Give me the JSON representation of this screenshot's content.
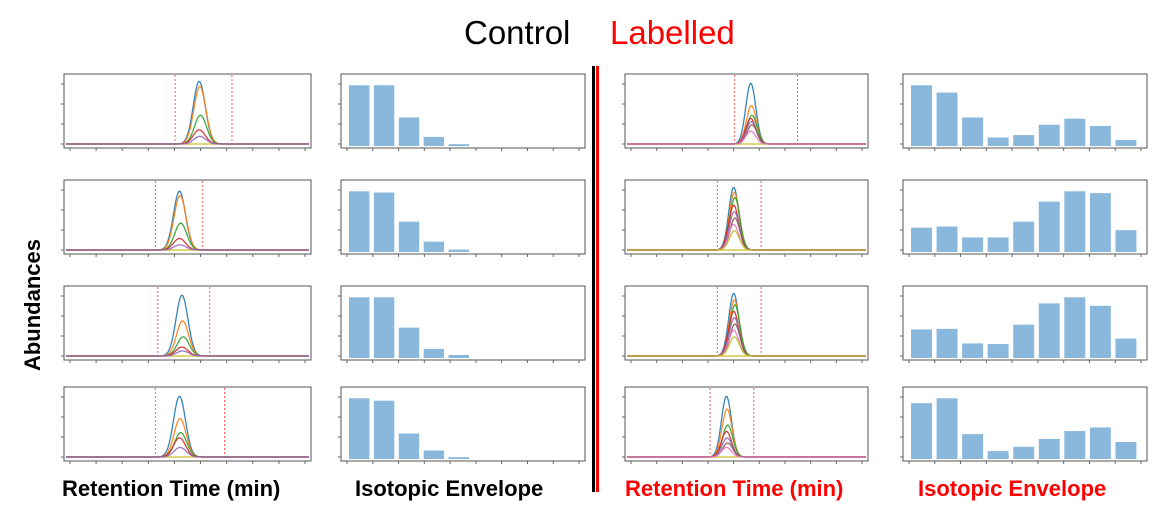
{
  "header": {
    "control": "Control",
    "labelled": "Labelled"
  },
  "ylabel": "Abundances",
  "xlabels": {
    "control_rt": "Retention Time (min)",
    "control_iso": "Isotopic Envelope",
    "labelled_rt": "Retention Time (min)",
    "labelled_iso": "Isotopic Envelope"
  },
  "colors": {
    "control_text": "#000000",
    "labelled_text": "#ff0000",
    "bar": "#8ab8dd",
    "window_line": "#ff5a5a",
    "trace_palette": [
      "#1f77b4",
      "#ff7f0e",
      "#2ca02c",
      "#d62728",
      "#9467bd",
      "#8c564b",
      "#e377c2",
      "#bcbd22",
      "#17becf"
    ]
  },
  "chart_data": [
    {
      "type": "bar",
      "group": "Control",
      "row": 1,
      "values": [
        1.0,
        1.0,
        0.47,
        0.15,
        0.03
      ],
      "ylim": [
        0,
        1.12
      ]
    },
    {
      "type": "bar",
      "group": "Control",
      "row": 2,
      "values": [
        1.0,
        0.98,
        0.5,
        0.17,
        0.04
      ],
      "ylim": [
        0,
        1.12
      ]
    },
    {
      "type": "bar",
      "group": "Control",
      "row": 3,
      "values": [
        1.0,
        1.0,
        0.5,
        0.15,
        0.05
      ],
      "ylim": [
        0,
        1.12
      ]
    },
    {
      "type": "bar",
      "group": "Control",
      "row": 4,
      "values": [
        1.0,
        0.96,
        0.42,
        0.14,
        0.03
      ],
      "ylim": [
        0,
        1.12
      ]
    },
    {
      "type": "bar",
      "group": "Labelled",
      "row": 1,
      "values": [
        1.0,
        0.88,
        0.47,
        0.14,
        0.18,
        0.35,
        0.45,
        0.33,
        0.1
      ],
      "ylim": [
        0,
        1.12
      ]
    },
    {
      "type": "bar",
      "group": "Labelled",
      "row": 2,
      "values": [
        0.4,
        0.42,
        0.24,
        0.24,
        0.5,
        0.83,
        1.0,
        0.97,
        0.36
      ],
      "ylim": [
        0,
        1.12
      ]
    },
    {
      "type": "bar",
      "group": "Labelled",
      "row": 3,
      "values": [
        0.47,
        0.48,
        0.24,
        0.23,
        0.55,
        0.9,
        1.0,
        0.86,
        0.32
      ],
      "ylim": [
        0,
        1.12
      ]
    },
    {
      "type": "bar",
      "group": "Labelled",
      "row": 4,
      "values": [
        0.92,
        1.0,
        0.41,
        0.13,
        0.2,
        0.33,
        0.46,
        0.52,
        0.28
      ],
      "ylim": [
        0,
        1.12
      ]
    },
    {
      "type": "line",
      "group": "Control",
      "row": 1,
      "peak_center": 0.55,
      "window": [
        0.45,
        0.68
      ],
      "series": [
        {
          "peak": 0.98
        },
        {
          "peak": 0.9
        },
        {
          "peak": 0.45
        },
        {
          "peak": 0.22
        },
        {
          "peak": 0.12
        }
      ]
    },
    {
      "type": "line",
      "group": "Control",
      "row": 2,
      "peak_center": 0.47,
      "window": [
        0.37,
        0.56
      ],
      "series": [
        {
          "peak": 0.92
        },
        {
          "peak": 0.85
        },
        {
          "peak": 0.42
        },
        {
          "peak": 0.18
        },
        {
          "peak": 0.08
        }
      ]
    },
    {
      "type": "line",
      "group": "Control",
      "row": 3,
      "peak_center": 0.48,
      "window": [
        0.38,
        0.59
      ],
      "series": [
        {
          "peak": 0.95
        },
        {
          "peak": 0.55
        },
        {
          "peak": 0.3
        },
        {
          "peak": 0.14
        },
        {
          "peak": 0.08
        }
      ]
    },
    {
      "type": "line",
      "group": "Control",
      "row": 4,
      "peak_center": 0.47,
      "window": [
        0.37,
        0.65
      ],
      "series": [
        {
          "peak": 0.95
        },
        {
          "peak": 0.6
        },
        {
          "peak": 0.38
        },
        {
          "peak": 0.3
        },
        {
          "peak": 0.15
        }
      ]
    },
    {
      "type": "line",
      "group": "Labelled",
      "row": 1,
      "peak_center": 0.52,
      "window": [
        0.45,
        0.71
      ],
      "series": [
        {
          "peak": 0.95
        },
        {
          "peak": 0.6
        },
        {
          "peak": 0.45
        },
        {
          "peak": 0.4
        },
        {
          "peak": 0.35
        },
        {
          "peak": 0.3
        },
        {
          "peak": 0.2
        }
      ]
    },
    {
      "type": "line",
      "group": "Labelled",
      "row": 2,
      "peak_center": 0.45,
      "window": [
        0.38,
        0.56
      ],
      "series": [
        {
          "peak": 0.98
        },
        {
          "peak": 0.9
        },
        {
          "peak": 0.82
        },
        {
          "peak": 0.7
        },
        {
          "peak": 0.6
        },
        {
          "peak": 0.5
        },
        {
          "peak": 0.4
        },
        {
          "peak": 0.3
        }
      ]
    },
    {
      "type": "line",
      "group": "Labelled",
      "row": 3,
      "peak_center": 0.45,
      "window": [
        0.38,
        0.56
      ],
      "series": [
        {
          "peak": 0.98
        },
        {
          "peak": 0.88
        },
        {
          "peak": 0.8
        },
        {
          "peak": 0.7
        },
        {
          "peak": 0.6
        },
        {
          "peak": 0.5
        },
        {
          "peak": 0.4
        },
        {
          "peak": 0.3
        }
      ]
    },
    {
      "type": "line",
      "group": "Labelled",
      "row": 4,
      "peak_center": 0.42,
      "window": [
        0.35,
        0.53
      ],
      "series": [
        {
          "peak": 0.95
        },
        {
          "peak": 0.75
        },
        {
          "peak": 0.5
        },
        {
          "peak": 0.4
        },
        {
          "peak": 0.3
        },
        {
          "peak": 0.22
        },
        {
          "peak": 0.15
        }
      ]
    }
  ]
}
